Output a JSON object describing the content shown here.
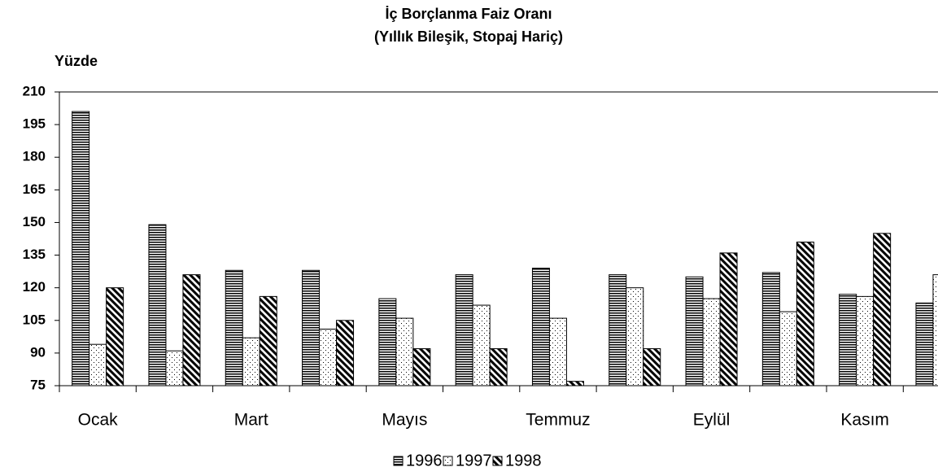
{
  "chart_data": {
    "type": "bar",
    "title": "İç Borçlanma Faiz Oranı",
    "subtitle": "(Yıllık Bileşik, Stopaj Hariç)",
    "y_label": "Yüzde",
    "categories": [
      "Ocak",
      null,
      "Mart",
      null,
      "Mayıs",
      null,
      "Temmuz",
      null,
      "Eylül",
      null,
      "Kasım",
      null
    ],
    "series": [
      {
        "name": "1996",
        "color": "#000000",
        "pattern": "horizontal",
        "values": [
          201,
          149,
          128,
          128,
          115,
          126,
          129,
          126,
          125,
          127,
          117,
          113
        ]
      },
      {
        "name": "1997",
        "color": "#000000",
        "pattern": "dots",
        "values": [
          94,
          91,
          97,
          101,
          106,
          112,
          106,
          120,
          115,
          109,
          116,
          126
        ]
      },
      {
        "name": "1998",
        "color": "#000000",
        "pattern": "diagonal",
        "values": [
          120,
          126,
          116,
          105,
          92,
          92,
          77,
          92,
          136,
          141,
          145,
          null
        ]
      }
    ],
    "ylim": [
      75,
      210
    ],
    "yticks": [
      75,
      90,
      105,
      120,
      135,
      150,
      165,
      180,
      195,
      210
    ],
    "grid": false,
    "legend": "bottom"
  }
}
